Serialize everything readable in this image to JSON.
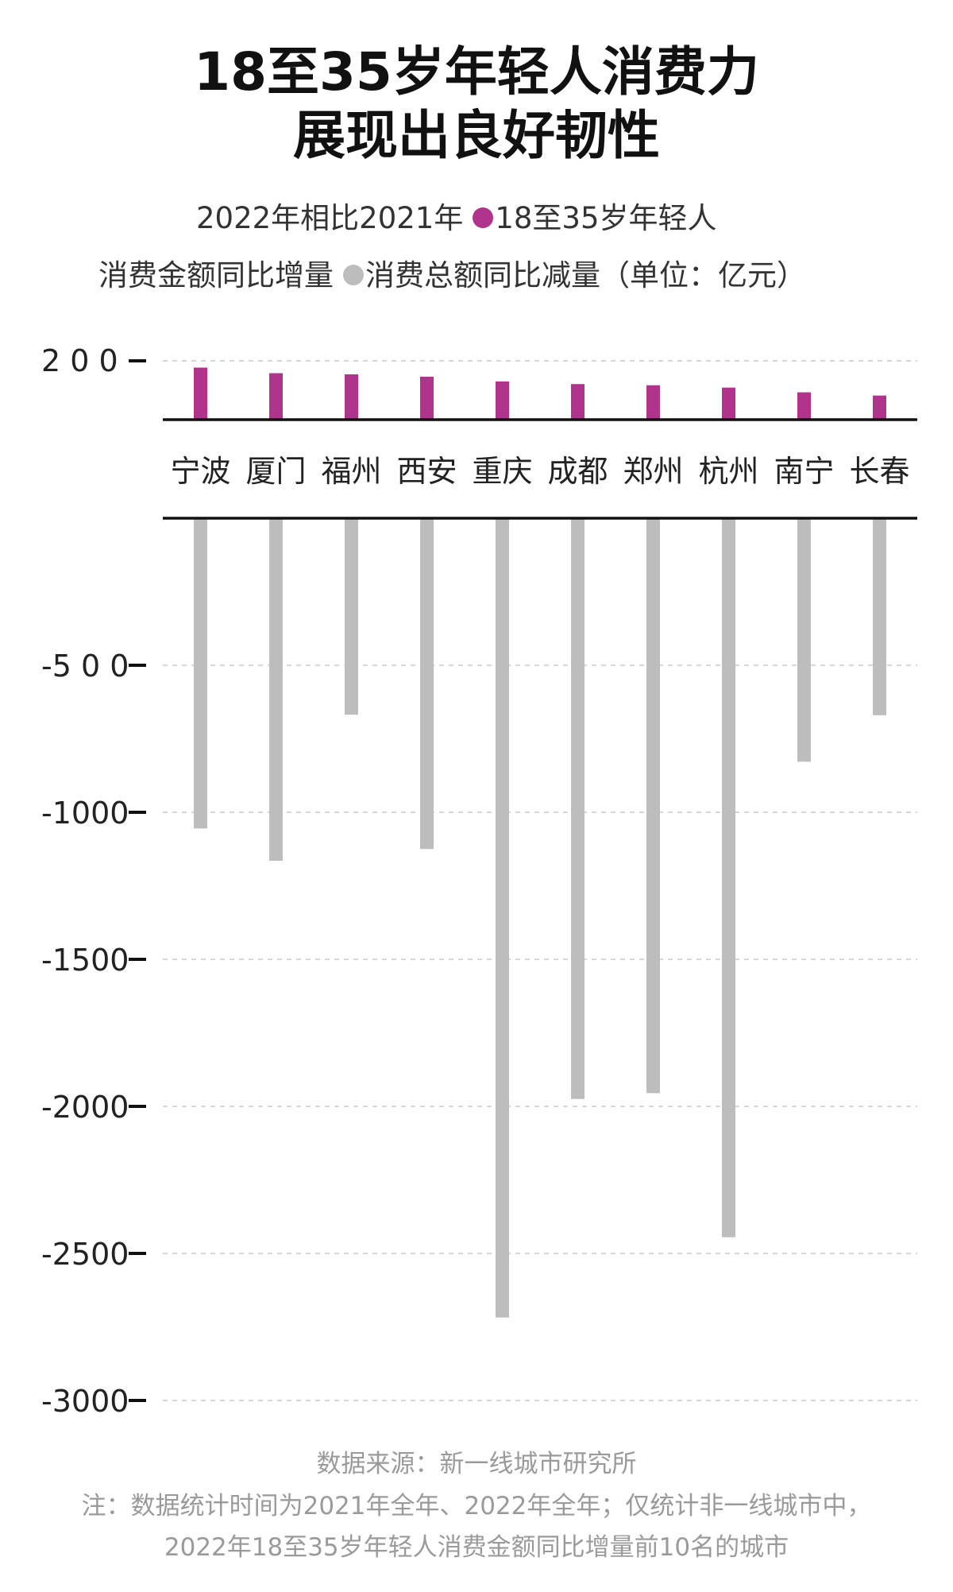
{
  "title_line1": "18至35岁年轻人消费力",
  "title_line2": "展现出良好韧性",
  "legend": {
    "line1_prefix": "2022年相比2021年",
    "increase_label": "18至35岁年轻人",
    "line2_prefix": "消费金额同比增量",
    "decrease_label": "消费总额同比减量（单位：亿元）"
  },
  "colors": {
    "increase": "#b0338c",
    "decrease": "#bdbdbd"
  },
  "chart_data": {
    "type": "bar",
    "categories": [
      "宁波",
      "厦门",
      "福州",
      "西安",
      "重庆",
      "成都",
      "郑州",
      "杭州",
      "南宁",
      "长春"
    ],
    "series": [
      {
        "name": "18至35岁年轻人消费金额同比增量",
        "values": [
          177,
          158,
          154,
          146,
          130,
          121,
          117,
          109,
          93,
          82
        ]
      },
      {
        "name": "消费总额同比减量",
        "values": [
          -1055,
          -1165,
          -668,
          -1125,
          -2718,
          -1975,
          -1955,
          -2445,
          -828,
          -670
        ]
      }
    ],
    "upper_axis": {
      "ticks": [
        200
      ],
      "tick_labels": [
        "2 0 0"
      ],
      "range": [
        0,
        200
      ]
    },
    "lower_axis": {
      "ticks": [
        -500,
        -1000,
        -1500,
        -2000,
        -2500,
        -3000
      ],
      "tick_labels": [
        "-5 0 0",
        "-1000",
        "-1500",
        "-2000",
        "-2500",
        "-3000"
      ],
      "range": [
        -3000,
        0
      ]
    },
    "grid": true
  },
  "footer": {
    "source": "数据来源：新一线城市研究所",
    "note_line1": "注：数据统计时间为2021年全年、2022年全年；仅统计非一线城市中，",
    "note_line2": "2022年18至35岁年轻人消费金额同比增量前10名的城市"
  }
}
